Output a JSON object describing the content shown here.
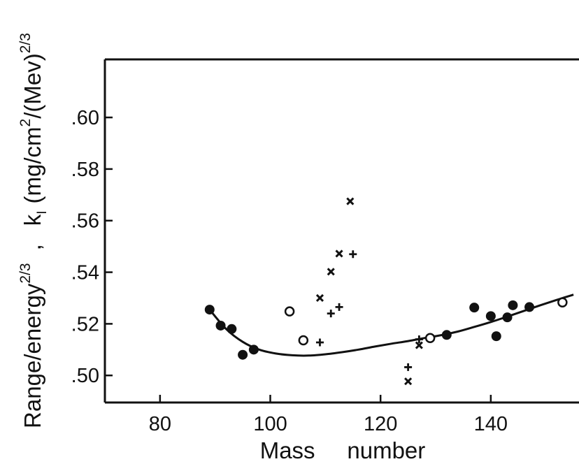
{
  "chart_data": {
    "type": "scatter",
    "xlabel": "Mass     number",
    "ylabel": {
      "main": "Range/energy",
      "main_exp": "2/3",
      "sep": ",",
      "k": "k",
      "k_sub": "I",
      "units_a": "(mg/cm",
      "units_a_exp": "2",
      "units_b": "/(Mev)",
      "units_b_exp": "2/3"
    },
    "xlim": [
      70,
      156
    ],
    "ylim": [
      0.4895,
      0.6225
    ],
    "x_ticks": [
      {
        "value": 80,
        "label": "80"
      },
      {
        "value": 100,
        "label": "100"
      },
      {
        "value": 120,
        "label": "120"
      },
      {
        "value": 140,
        "label": "140"
      }
    ],
    "y_ticks": [
      {
        "value": 0.5,
        "label": ".50"
      },
      {
        "value": 0.52,
        "label": ".52"
      },
      {
        "value": 0.54,
        "label": ".54"
      },
      {
        "value": 0.56,
        "label": ".56"
      },
      {
        "value": 0.58,
        "label": ".58"
      },
      {
        "value": 0.6,
        "label": ".60"
      }
    ],
    "grid": false,
    "colors": {
      "ink": "#111111",
      "background": "#ffffff"
    },
    "series": [
      {
        "marker": "filled-circle",
        "points": [
          [
            89.0,
            0.5255
          ],
          [
            91.0,
            0.5193
          ],
          [
            93.0,
            0.518
          ],
          [
            95.0,
            0.508
          ],
          [
            97.0,
            0.51
          ],
          [
            132.0,
            0.5157
          ],
          [
            137.0,
            0.5263
          ],
          [
            140.0,
            0.523
          ],
          [
            141.0,
            0.5152
          ],
          [
            143.0,
            0.5225
          ],
          [
            144.0,
            0.5272
          ],
          [
            147.0,
            0.5265
          ]
        ]
      },
      {
        "marker": "open-circle",
        "points": [
          [
            103.5,
            0.5248
          ],
          [
            106.0,
            0.5136
          ],
          [
            129.0,
            0.5145
          ],
          [
            153.0,
            0.5283
          ]
        ]
      },
      {
        "marker": "cross-x",
        "points": [
          [
            109.0,
            0.53
          ],
          [
            111.0,
            0.5402
          ],
          [
            112.5,
            0.5472
          ],
          [
            114.5,
            0.5675
          ],
          [
            125.0,
            0.4977
          ],
          [
            127.0,
            0.5117
          ]
        ]
      },
      {
        "marker": "plus",
        "points": [
          [
            109.0,
            0.5128
          ],
          [
            111.0,
            0.524
          ],
          [
            112.5,
            0.5265
          ],
          [
            115.0,
            0.547
          ],
          [
            125.0,
            0.5032
          ],
          [
            127.0,
            0.514
          ]
        ]
      }
    ],
    "fit_curve": {
      "points": [
        [
          89,
          0.5255
        ],
        [
          92,
          0.518
        ],
        [
          95,
          0.513
        ],
        [
          98,
          0.51
        ],
        [
          101,
          0.5085
        ],
        [
          104,
          0.5078
        ],
        [
          107,
          0.5077
        ],
        [
          110,
          0.5082
        ],
        [
          113,
          0.509
        ],
        [
          116,
          0.51
        ],
        [
          119,
          0.5112
        ],
        [
          122,
          0.5123
        ],
        [
          125,
          0.5133
        ],
        [
          128,
          0.5145
        ],
        [
          131,
          0.5156
        ],
        [
          134,
          0.517
        ],
        [
          137,
          0.5188
        ],
        [
          140,
          0.5207
        ],
        [
          143,
          0.5228
        ],
        [
          146,
          0.525
        ],
        [
          149,
          0.5272
        ],
        [
          152,
          0.5293
        ],
        [
          155,
          0.5313
        ]
      ]
    }
  }
}
